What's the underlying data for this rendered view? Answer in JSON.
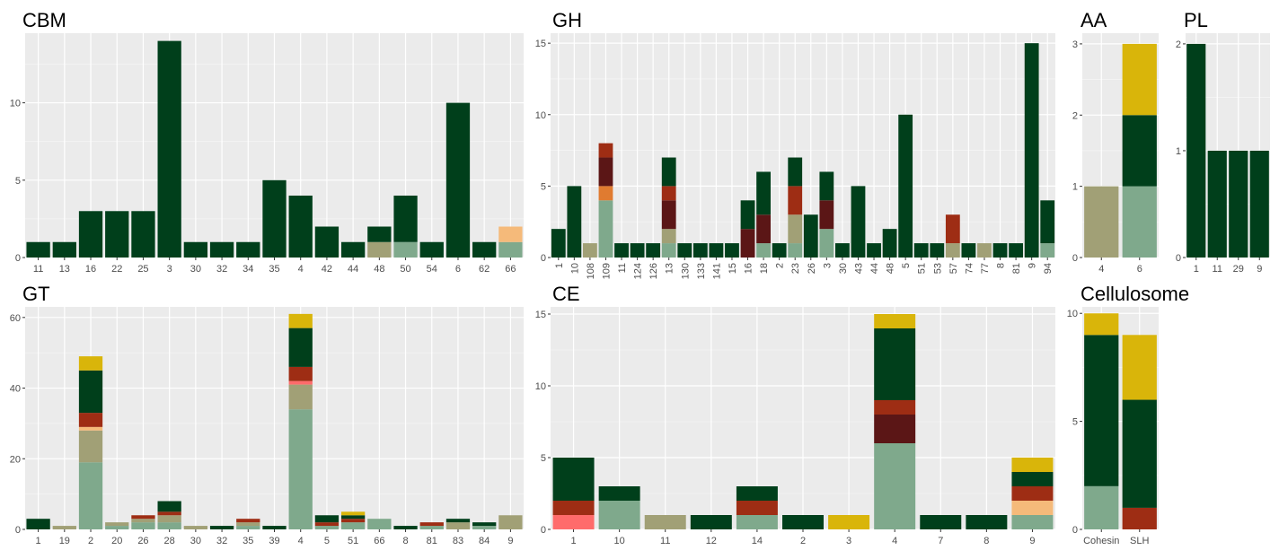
{
  "colors": {
    "c0": "#7FA98C",
    "c1": "#A1A076",
    "c2": "#FF6B6B",
    "c3": "#F5BA7A",
    "c4": "#E07B30",
    "c5": "#9E2D14",
    "c6": "#5B1616",
    "c7": "#003F1B",
    "c8": "#D9B50A"
  },
  "chart_data": [
    {
      "title": "CBM",
      "type": "bar",
      "stacked": true,
      "ylim": [
        0,
        14.5
      ],
      "yticks": [
        0,
        5,
        10
      ],
      "categories": [
        "11",
        "13",
        "16",
        "22",
        "25",
        "3",
        "30",
        "32",
        "34",
        "35",
        "4",
        "42",
        "44",
        "48",
        "50",
        "54",
        "6",
        "62",
        "66"
      ],
      "stacks": [
        [
          [
            "c7",
            1
          ]
        ],
        [
          [
            "c7",
            1
          ]
        ],
        [
          [
            "c7",
            3
          ]
        ],
        [
          [
            "c7",
            3
          ]
        ],
        [
          [
            "c7",
            3
          ]
        ],
        [
          [
            "c7",
            14
          ]
        ],
        [
          [
            "c7",
            1
          ]
        ],
        [
          [
            "c7",
            1
          ]
        ],
        [
          [
            "c7",
            1
          ]
        ],
        [
          [
            "c7",
            5
          ]
        ],
        [
          [
            "c7",
            4
          ]
        ],
        [
          [
            "c7",
            2
          ]
        ],
        [
          [
            "c7",
            1
          ]
        ],
        [
          [
            "c1",
            1
          ],
          [
            "c7",
            1
          ]
        ],
        [
          [
            "c0",
            1
          ],
          [
            "c7",
            3
          ]
        ],
        [
          [
            "c7",
            1
          ]
        ],
        [
          [
            "c7",
            10
          ]
        ],
        [
          [
            "c7",
            1
          ]
        ],
        [
          [
            "c0",
            1
          ],
          [
            "c3",
            1
          ]
        ]
      ]
    },
    {
      "title": "GH",
      "type": "bar",
      "stacked": true,
      "ylim": [
        0,
        15.7
      ],
      "yticks": [
        0,
        5,
        10,
        15
      ],
      "rotate_labels": true,
      "categories": [
        "1",
        "10",
        "108",
        "109",
        "11",
        "124",
        "126",
        "13",
        "130",
        "133",
        "141",
        "15",
        "16",
        "18",
        "2",
        "23",
        "26",
        "3",
        "30",
        "43",
        "44",
        "48",
        "5",
        "51",
        "53",
        "57",
        "74",
        "77",
        "8",
        "81",
        "9",
        "94"
      ],
      "stacks": [
        [
          [
            "c7",
            2
          ]
        ],
        [
          [
            "c7",
            5
          ]
        ],
        [
          [
            "c1",
            1
          ]
        ],
        [
          [
            "c0",
            4
          ],
          [
            "c4",
            1
          ],
          [
            "c6",
            2
          ],
          [
            "c5",
            1
          ]
        ],
        [
          [
            "c7",
            1
          ]
        ],
        [
          [
            "c7",
            1
          ]
        ],
        [
          [
            "c7",
            1
          ]
        ],
        [
          [
            "c0",
            1
          ],
          [
            "c1",
            1
          ],
          [
            "c6",
            2
          ],
          [
            "c5",
            1
          ],
          [
            "c7",
            2
          ]
        ],
        [
          [
            "c7",
            1
          ]
        ],
        [
          [
            "c7",
            1
          ]
        ],
        [
          [
            "c7",
            1
          ]
        ],
        [
          [
            "c7",
            1
          ]
        ],
        [
          [
            "c6",
            2
          ],
          [
            "c7",
            2
          ]
        ],
        [
          [
            "c0",
            1
          ],
          [
            "c6",
            2
          ],
          [
            "c7",
            3
          ]
        ],
        [
          [
            "c7",
            1
          ]
        ],
        [
          [
            "c0",
            1
          ],
          [
            "c1",
            2
          ],
          [
            "c5",
            2
          ],
          [
            "c7",
            2
          ]
        ],
        [
          [
            "c7",
            3
          ]
        ],
        [
          [
            "c0",
            2
          ],
          [
            "c6",
            2
          ],
          [
            "c7",
            2
          ]
        ],
        [
          [
            "c7",
            1
          ]
        ],
        [
          [
            "c7",
            5
          ]
        ],
        [
          [
            "c7",
            1
          ]
        ],
        [
          [
            "c7",
            2
          ]
        ],
        [
          [
            "c7",
            10
          ]
        ],
        [
          [
            "c7",
            1
          ]
        ],
        [
          [
            "c7",
            1
          ]
        ],
        [
          [
            "c1",
            1
          ],
          [
            "c5",
            2
          ]
        ],
        [
          [
            "c7",
            1
          ]
        ],
        [
          [
            "c1",
            1
          ]
        ],
        [
          [
            "c7",
            1
          ]
        ],
        [
          [
            "c7",
            1
          ]
        ],
        [
          [
            "c7",
            15
          ]
        ],
        [
          [
            "c0",
            1
          ],
          [
            "c7",
            3
          ]
        ]
      ]
    },
    {
      "title": "AA",
      "type": "bar",
      "stacked": true,
      "ylim": [
        0,
        3.15
      ],
      "yticks": [
        0,
        1,
        2,
        3
      ],
      "categories": [
        "4",
        "6"
      ],
      "stacks": [
        [
          [
            "c1",
            1
          ]
        ],
        [
          [
            "c0",
            1
          ],
          [
            "c7",
            1
          ],
          [
            "c8",
            1
          ]
        ]
      ]
    },
    {
      "title": "PL",
      "type": "bar",
      "stacked": true,
      "ylim": [
        0,
        2.1
      ],
      "yticks": [
        0,
        1,
        2
      ],
      "categories": [
        "1",
        "11",
        "29",
        "9"
      ],
      "stacks": [
        [
          [
            "c7",
            2
          ]
        ],
        [
          [
            "c7",
            1
          ]
        ],
        [
          [
            "c7",
            1
          ]
        ],
        [
          [
            "c7",
            1
          ]
        ]
      ]
    },
    {
      "title": "GT",
      "type": "bar",
      "stacked": true,
      "ylim": [
        0,
        63
      ],
      "yticks": [
        0,
        20,
        40,
        60
      ],
      "categories": [
        "1",
        "19",
        "2",
        "20",
        "26",
        "28",
        "30",
        "32",
        "35",
        "39",
        "4",
        "5",
        "51",
        "66",
        "8",
        "81",
        "83",
        "84",
        "9"
      ],
      "stacks": [
        [
          [
            "c7",
            3
          ]
        ],
        [
          [
            "c1",
            1
          ]
        ],
        [
          [
            "c0",
            19
          ],
          [
            "c1",
            9
          ],
          [
            "c3",
            1
          ],
          [
            "c5",
            4
          ],
          [
            "c7",
            12
          ],
          [
            "c8",
            4
          ]
        ],
        [
          [
            "c0",
            1
          ],
          [
            "c1",
            1
          ]
        ],
        [
          [
            "c0",
            2
          ],
          [
            "c1",
            1
          ],
          [
            "c5",
            1
          ]
        ],
        [
          [
            "c0",
            2
          ],
          [
            "c1",
            2
          ],
          [
            "c5",
            1
          ],
          [
            "c7",
            3
          ]
        ],
        [
          [
            "c1",
            1
          ]
        ],
        [
          [
            "c7",
            1
          ]
        ],
        [
          [
            "c0",
            1
          ],
          [
            "c1",
            1
          ],
          [
            "c5",
            1
          ]
        ],
        [
          [
            "c7",
            1
          ]
        ],
        [
          [
            "c0",
            34
          ],
          [
            "c1",
            7
          ],
          [
            "c2",
            1
          ],
          [
            "c5",
            4
          ],
          [
            "c7",
            11
          ],
          [
            "c8",
            4
          ]
        ],
        [
          [
            "c0",
            1
          ],
          [
            "c5",
            1
          ],
          [
            "c7",
            2
          ]
        ],
        [
          [
            "c0",
            2
          ],
          [
            "c5",
            1
          ],
          [
            "c7",
            1
          ],
          [
            "c8",
            1
          ]
        ],
        [
          [
            "c0",
            3
          ]
        ],
        [
          [
            "c7",
            1
          ]
        ],
        [
          [
            "c0",
            1
          ],
          [
            "c5",
            1
          ]
        ],
        [
          [
            "c1",
            2
          ],
          [
            "c7",
            1
          ]
        ],
        [
          [
            "c0",
            1
          ],
          [
            "c7",
            1
          ]
        ],
        [
          [
            "c1",
            4
          ]
        ]
      ]
    },
    {
      "title": "CE",
      "type": "bar",
      "stacked": true,
      "ylim": [
        0,
        15.5
      ],
      "yticks": [
        0,
        5,
        10,
        15
      ],
      "categories": [
        "1",
        "10",
        "11",
        "12",
        "14",
        "2",
        "3",
        "4",
        "7",
        "8",
        "9"
      ],
      "stacks": [
        [
          [
            "c2",
            1
          ],
          [
            "c5",
            1
          ],
          [
            "c7",
            3
          ]
        ],
        [
          [
            "c0",
            2
          ],
          [
            "c7",
            1
          ]
        ],
        [
          [
            "c1",
            1
          ]
        ],
        [
          [
            "c7",
            1
          ]
        ],
        [
          [
            "c0",
            1
          ],
          [
            "c5",
            1
          ],
          [
            "c7",
            1
          ]
        ],
        [
          [
            "c7",
            1
          ]
        ],
        [
          [
            "c8",
            1
          ]
        ],
        [
          [
            "c0",
            6
          ],
          [
            "c6",
            2
          ],
          [
            "c5",
            1
          ],
          [
            "c7",
            5
          ],
          [
            "c8",
            1
          ]
        ],
        [
          [
            "c7",
            1
          ]
        ],
        [
          [
            "c7",
            1
          ]
        ],
        [
          [
            "c0",
            1
          ],
          [
            "c3",
            1
          ],
          [
            "c5",
            1
          ],
          [
            "c7",
            1
          ],
          [
            "c8",
            1
          ]
        ]
      ]
    },
    {
      "title": "Cellulosome",
      "type": "bar",
      "stacked": true,
      "ylim": [
        0,
        10.3
      ],
      "yticks": [
        0,
        5,
        10
      ],
      "categories": [
        "Cohesin",
        "SLH"
      ],
      "stacks": [
        [
          [
            "c0",
            2
          ],
          [
            "c7",
            7
          ],
          [
            "c8",
            1
          ]
        ],
        [
          [
            "c5",
            1
          ],
          [
            "c7",
            5
          ],
          [
            "c8",
            3
          ]
        ]
      ]
    }
  ]
}
